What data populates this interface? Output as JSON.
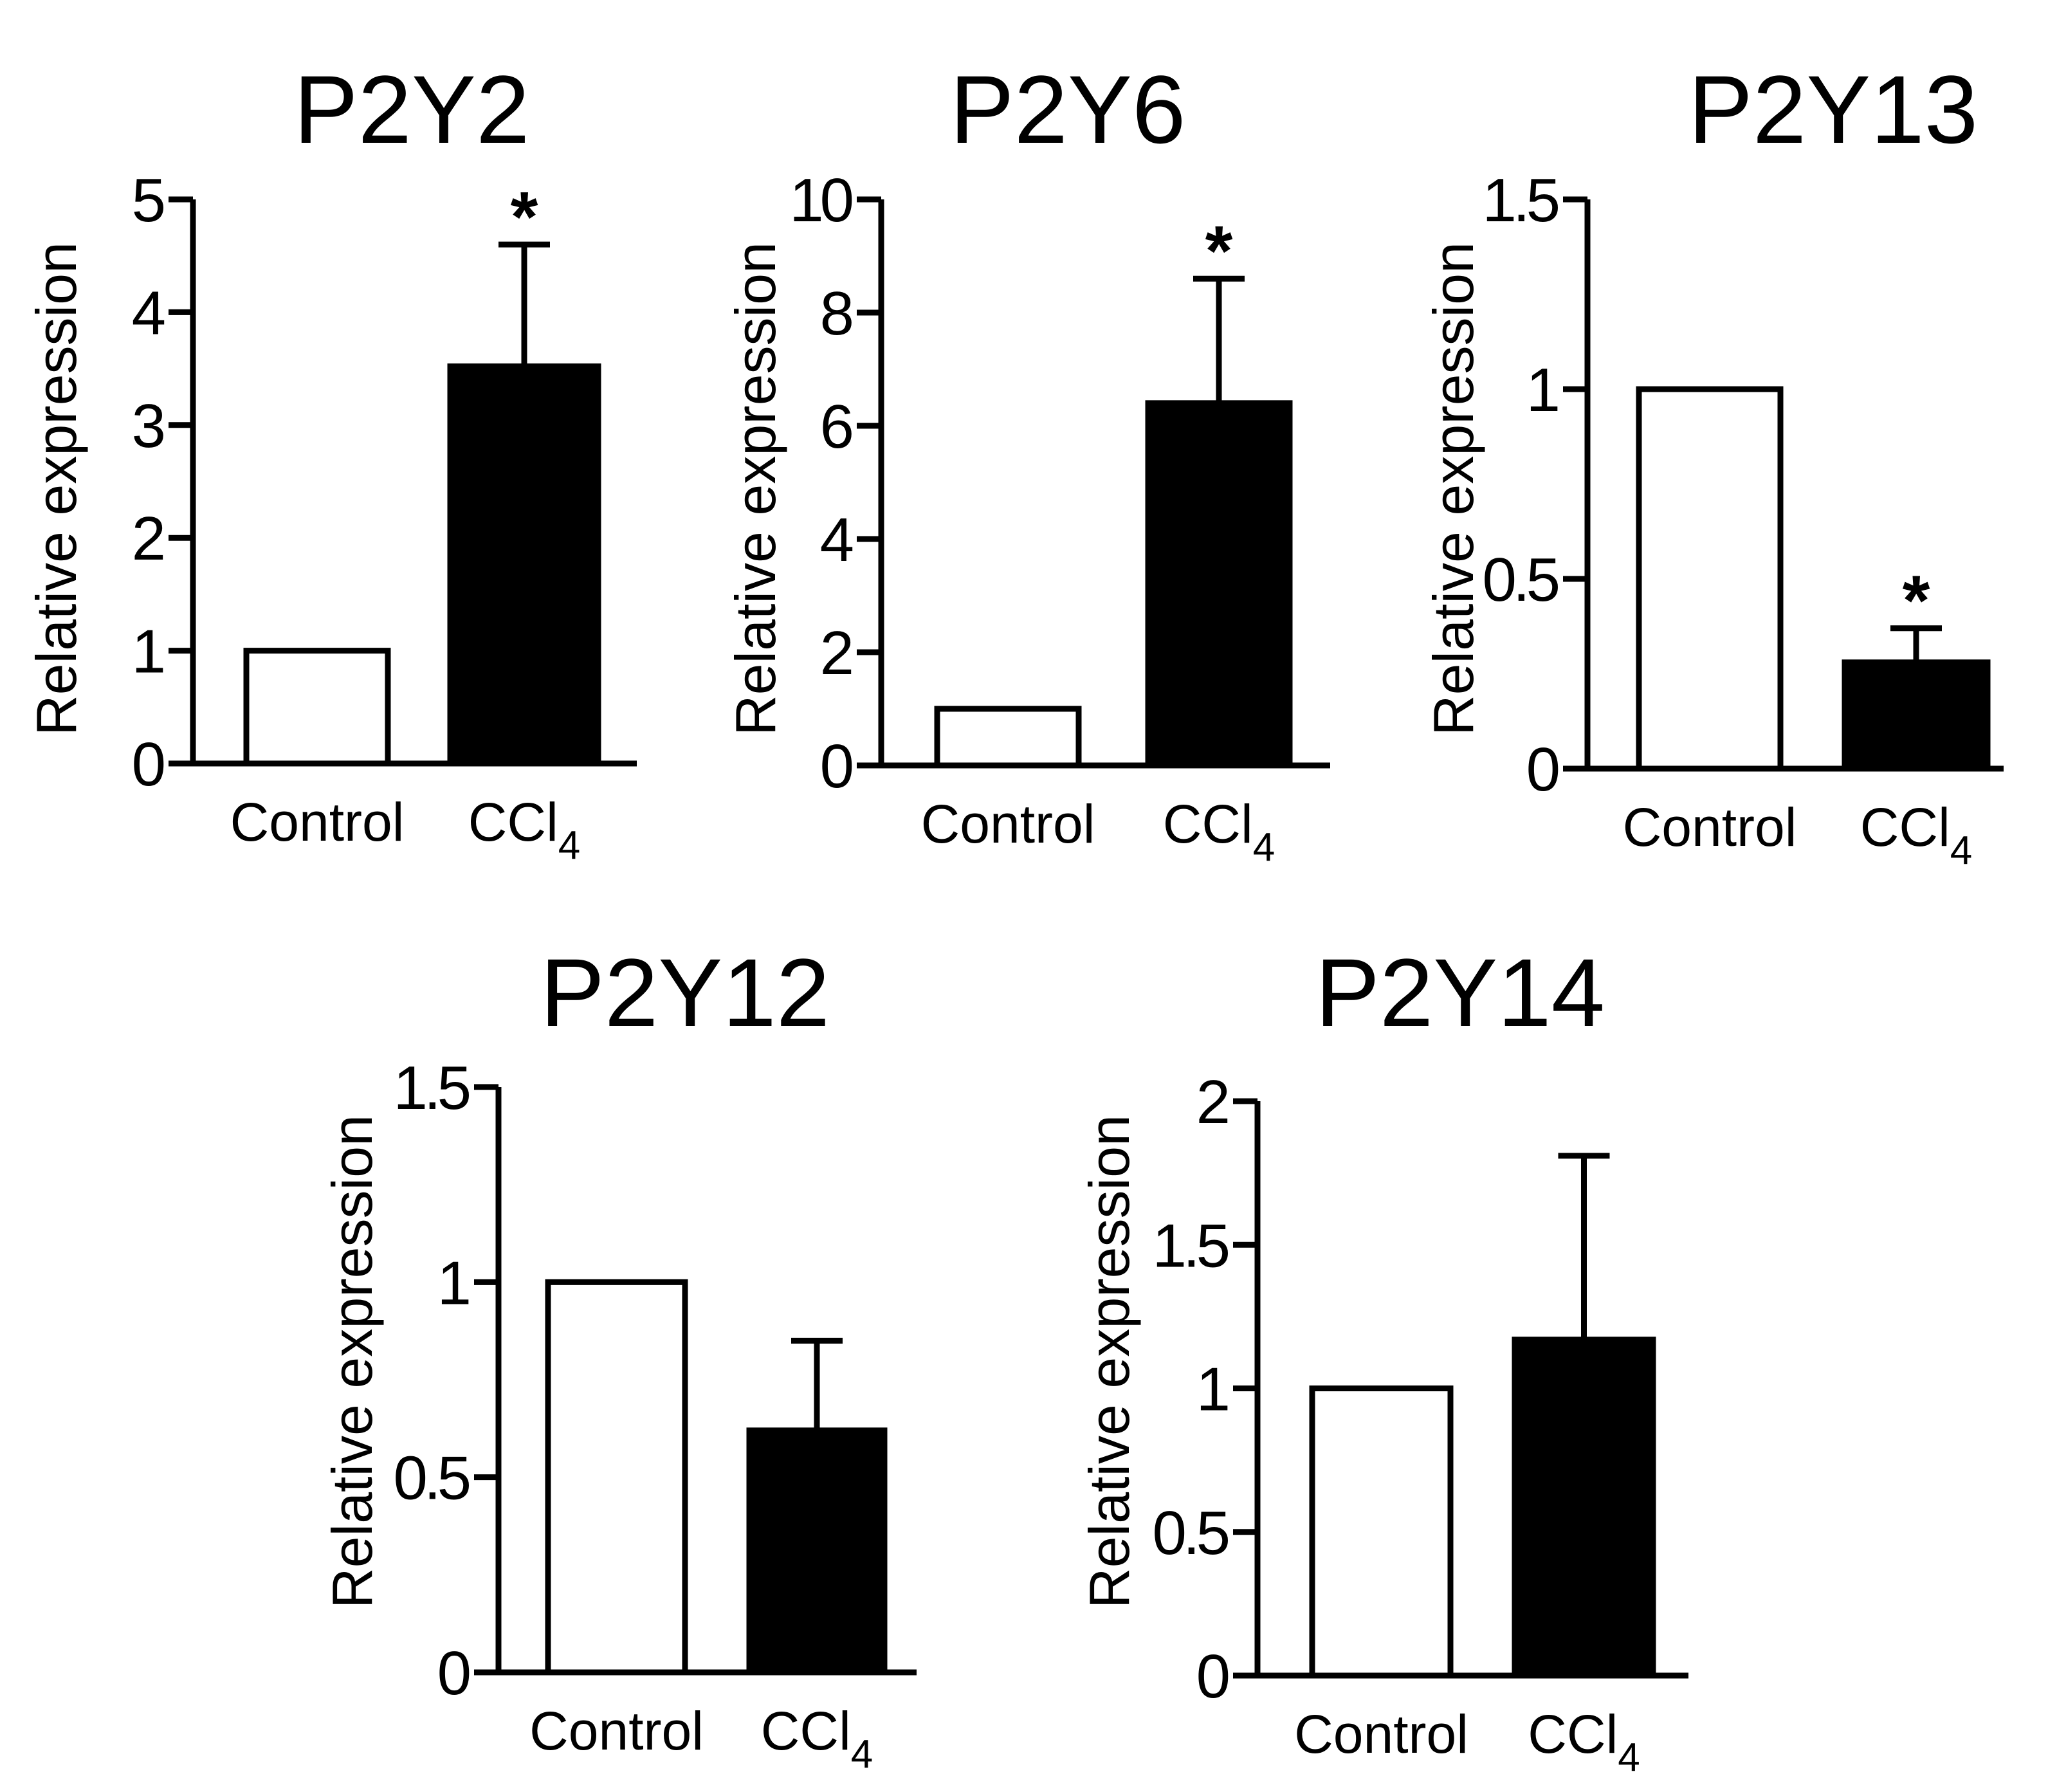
{
  "chart_data": [
    {
      "type": "bar",
      "title": "P2Y2",
      "ylabel": "Relative expression",
      "categories": [
        "Control",
        "CCl4"
      ],
      "category_display": [
        {
          "base": "Control",
          "sub": ""
        },
        {
          "base": "CCl",
          "sub": "4"
        }
      ],
      "values": [
        1.0,
        3.52
      ],
      "errors": [
        0.0,
        1.08
      ],
      "fills": [
        "#ffffff",
        "#000000"
      ],
      "significance": [
        "",
        "*"
      ],
      "ylim": [
        0,
        5
      ],
      "yticks": [
        0,
        1,
        2,
        3,
        4,
        5
      ],
      "ytick_labels": [
        "0",
        "1",
        "2",
        "3",
        "4",
        "5"
      ]
    },
    {
      "type": "bar",
      "title": "P2Y6",
      "ylabel": "Relative expression",
      "categories": [
        "Control",
        "CCl4"
      ],
      "category_display": [
        {
          "base": "Control",
          "sub": ""
        },
        {
          "base": "CCl",
          "sub": "4"
        }
      ],
      "values": [
        1.0,
        6.4
      ],
      "errors": [
        0.0,
        2.2
      ],
      "fills": [
        "#ffffff",
        "#000000"
      ],
      "significance": [
        "",
        "*"
      ],
      "ylim": [
        0,
        10
      ],
      "yticks": [
        0,
        2,
        4,
        6,
        8,
        10
      ],
      "ytick_labels": [
        "0",
        "2",
        "4",
        "6",
        "8",
        "10"
      ]
    },
    {
      "type": "bar",
      "title": "P2Y13",
      "ylabel": "Relative expression",
      "categories": [
        "Control",
        "CCl4"
      ],
      "category_display": [
        {
          "base": "Control",
          "sub": ""
        },
        {
          "base": "CCl",
          "sub": "4"
        }
      ],
      "values": [
        1.0,
        0.28
      ],
      "errors": [
        0.0,
        0.09
      ],
      "fills": [
        "#ffffff",
        "#000000"
      ],
      "significance": [
        "",
        "*"
      ],
      "ylim": [
        0,
        1.5
      ],
      "yticks": [
        0,
        0.5,
        1,
        1.5
      ],
      "ytick_labels": [
        "0",
        "0.5",
        "1",
        "1.5"
      ]
    },
    {
      "type": "bar",
      "title": "P2Y12",
      "ylabel": "Relative expression",
      "categories": [
        "Control",
        "CCl4"
      ],
      "category_display": [
        {
          "base": "Control",
          "sub": ""
        },
        {
          "base": "CCl",
          "sub": "4"
        }
      ],
      "values": [
        1.0,
        0.62
      ],
      "errors": [
        0.0,
        0.23
      ],
      "fills": [
        "#ffffff",
        "#000000"
      ],
      "significance": [
        "",
        ""
      ],
      "ylim": [
        0,
        1.5
      ],
      "yticks": [
        0,
        0.5,
        1,
        1.5
      ],
      "ytick_labels": [
        "0",
        "0.5",
        "1",
        "1.5"
      ]
    },
    {
      "type": "bar",
      "title": "P2Y14",
      "ylabel": "Relative expression",
      "categories": [
        "Control",
        "CCl4"
      ],
      "category_display": [
        {
          "base": "Control",
          "sub": ""
        },
        {
          "base": "CCl",
          "sub": "4"
        }
      ],
      "values": [
        1.0,
        1.17
      ],
      "errors": [
        0.0,
        0.64
      ],
      "fills": [
        "#ffffff",
        "#000000"
      ],
      "significance": [
        "",
        ""
      ],
      "ylim": [
        0,
        2
      ],
      "yticks": [
        0,
        0.5,
        1,
        1.5,
        2
      ],
      "ytick_labels": [
        "0",
        "0.5",
        "1",
        "1.5",
        "2"
      ]
    }
  ]
}
